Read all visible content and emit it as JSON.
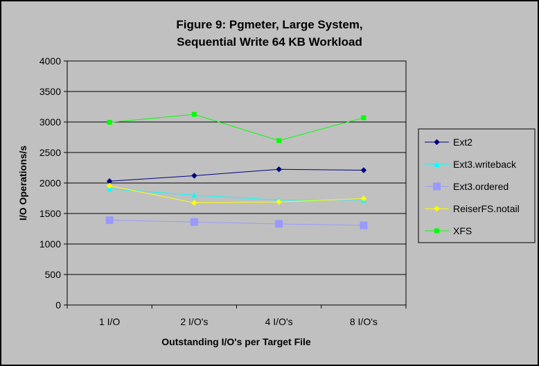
{
  "chart_data": {
    "type": "line",
    "title_lines": [
      "Figure 9: Pgmeter, Large System,",
      "Sequential Write 64 KB Workload"
    ],
    "xlabel": "Outstanding I/O's per Target File",
    "ylabel": "I/O Operations/s",
    "categories": [
      "1 I/O",
      "2 I/O's",
      "4 I/O's",
      "8 I/O's"
    ],
    "ylim": [
      0,
      4000
    ],
    "yticks": [
      0,
      500,
      1000,
      1500,
      2000,
      2500,
      3000,
      3500,
      4000
    ],
    "grid": true,
    "legend_position": "right",
    "series": [
      {
        "name": "Ext2",
        "values": [
          2030,
          2120,
          2225,
          2210
        ],
        "color": "#000080",
        "marker": "diamond"
      },
      {
        "name": "Ext3.writeback",
        "values": [
          1905,
          1800,
          1720,
          1725
        ],
        "color": "#00ffff",
        "marker": "triangle"
      },
      {
        "name": "Ext3.ordered",
        "values": [
          1390,
          1360,
          1330,
          1305
        ],
        "color": "#9999ff",
        "marker": "square-large"
      },
      {
        "name": "ReiserFS.notail",
        "values": [
          1955,
          1675,
          1690,
          1745
        ],
        "color": "#ffff00",
        "marker": "diamond"
      },
      {
        "name": "XFS",
        "values": [
          2995,
          3125,
          2695,
          3070
        ],
        "color": "#00ff00",
        "marker": "square"
      }
    ],
    "plot_background": "#c0c0c0",
    "chart_background": "#c0c0c0",
    "frame_color": "#000000"
  }
}
